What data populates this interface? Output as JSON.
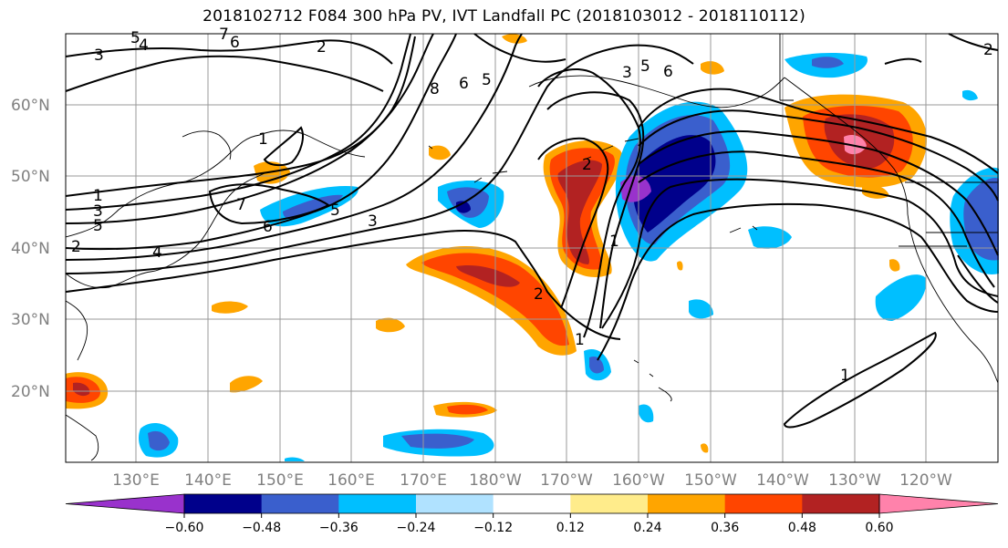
{
  "title": "2018102712 F084 300 hPa PV, IVT Landfall PC (2018103012 - 2018110112)",
  "lat_labels": [
    "60°N",
    "50°N",
    "40°N",
    "30°N",
    "20°N"
  ],
  "lon_labels": [
    "130°E",
    "140°E",
    "150°E",
    "160°E",
    "170°E",
    "180°W",
    "170°W",
    "160°W",
    "150°W",
    "140°W",
    "130°W",
    "120°W"
  ],
  "colorbar": {
    "ticks": [
      "−0.60",
      "−0.48",
      "−0.36",
      "−0.24",
      "−0.12",
      "0.12",
      "0.24",
      "0.36",
      "0.48",
      "0.60"
    ],
    "colors": [
      "#9932cc",
      "#00008b",
      "#3a5fcd",
      "#00bfff",
      "#b0e2ff",
      "#ffffff",
      "#ffec8b",
      "#ffa500",
      "#ff4500",
      "#b22222",
      "#ff82ab"
    ]
  },
  "contour_labels": [
    "3",
    "4",
    "5",
    "6",
    "7",
    "8",
    "6",
    "5",
    "2",
    "1",
    "1",
    "3",
    "5",
    "2",
    "4",
    "7",
    "6",
    "5",
    "3",
    "2",
    "1",
    "1",
    "2",
    "6",
    "5",
    "3",
    "2",
    "1"
  ]
}
